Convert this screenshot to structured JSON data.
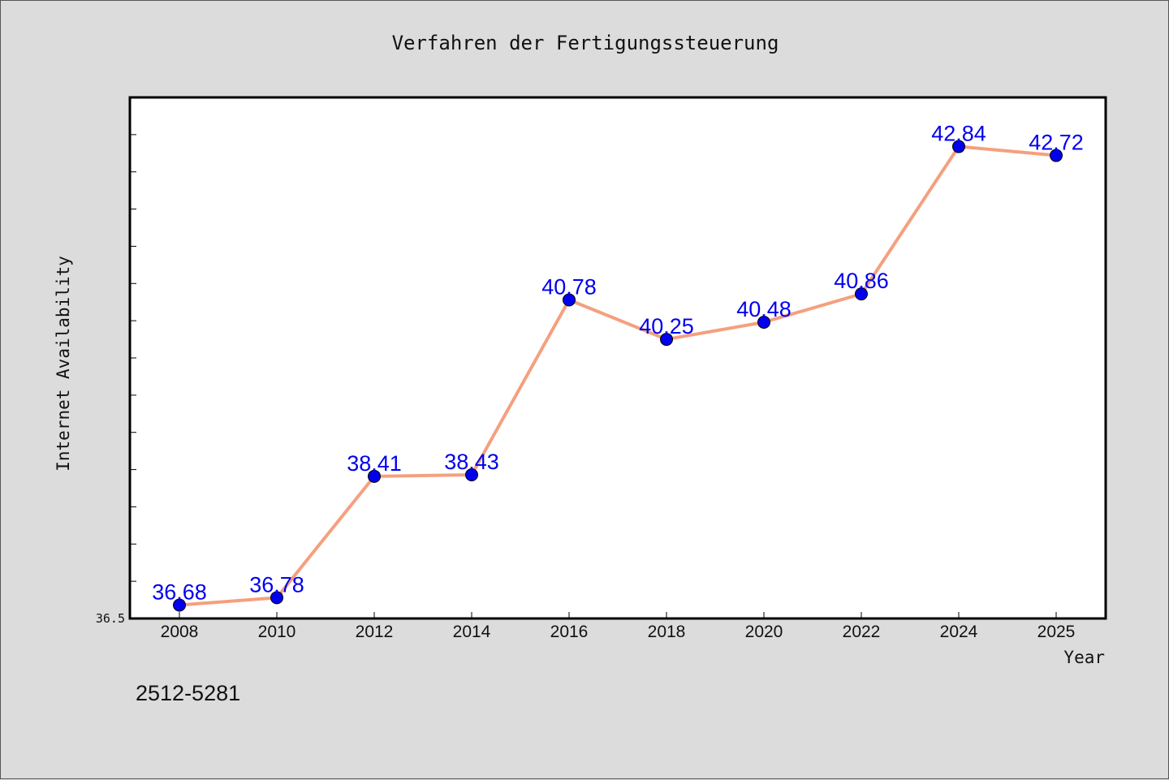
{
  "chart_data": {
    "type": "line",
    "title": "Verfahren der Fertigungssteuerung",
    "xlabel": "Year",
    "ylabel": "Internet Availability",
    "categories": [
      "2008",
      "2010",
      "2012",
      "2014",
      "2016",
      "2018",
      "2020",
      "2022",
      "2024",
      "2025"
    ],
    "series": [
      {
        "values": [
          36.68,
          36.78,
          38.41,
          38.43,
          40.78,
          40.25,
          40.48,
          40.86,
          42.84,
          42.72
        ]
      }
    ],
    "y_tick_labels": [
      "36.5"
    ],
    "ylim": [
      36.5,
      43.5
    ],
    "grid": false,
    "legend": "none",
    "footnote": "2512-5281",
    "colors": {
      "line": "#f4a07f",
      "marker": "#0000ee",
      "data_label": "#0000ee",
      "plot_background": "#ffffff",
      "figure_background": "#dcdcdc"
    }
  }
}
